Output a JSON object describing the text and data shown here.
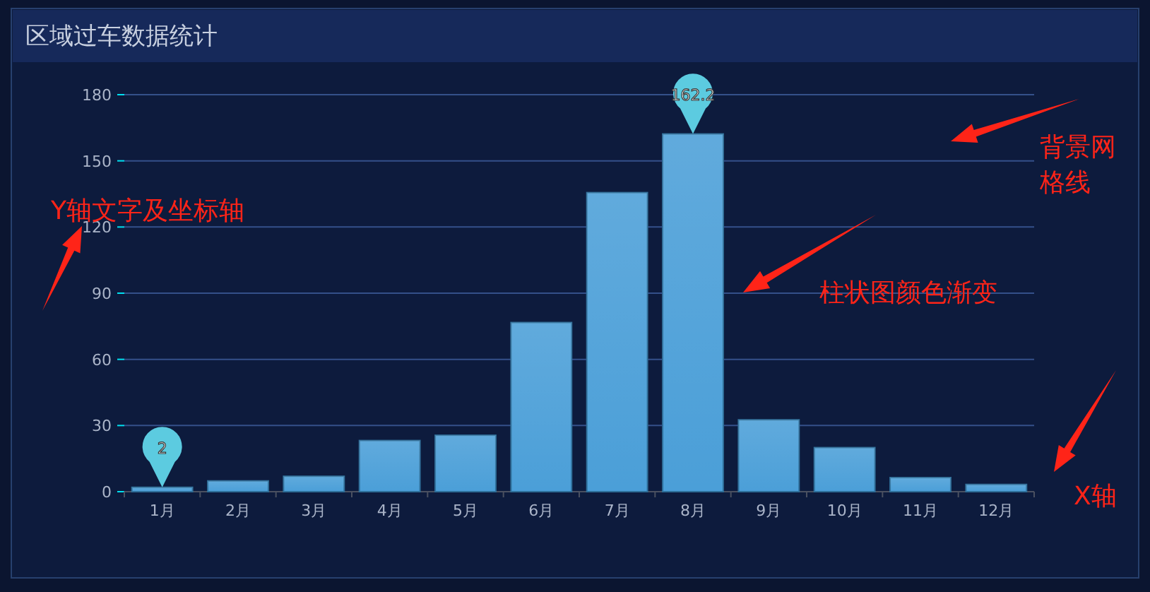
{
  "chart_data": {
    "type": "bar",
    "title": "区域过车数据统计",
    "categories": [
      "1月",
      "2月",
      "3月",
      "4月",
      "5月",
      "6月",
      "7月",
      "8月",
      "9月",
      "10月",
      "11月",
      "12月"
    ],
    "series": [
      {
        "color": "#4b9fd8",
        "values": [
          2.0,
          4.9,
          7.0,
          23.2,
          25.6,
          76.7,
          135.6,
          162.2,
          32.6,
          20.0,
          6.4,
          3.3
        ],
        "value_labels": [
          "2",
          null,
          null,
          null,
          null,
          null,
          null,
          "162.2",
          null,
          null,
          null,
          null
        ]
      }
    ],
    "ylim": [
      0,
      180
    ],
    "yticks": [
      0,
      30,
      60,
      90,
      120,
      150,
      180
    ],
    "grid": "y",
    "annotations": [
      "Y轴文字及坐标轴",
      "柱状图颜色渐变",
      "背景网格线",
      "X轴"
    ]
  }
}
